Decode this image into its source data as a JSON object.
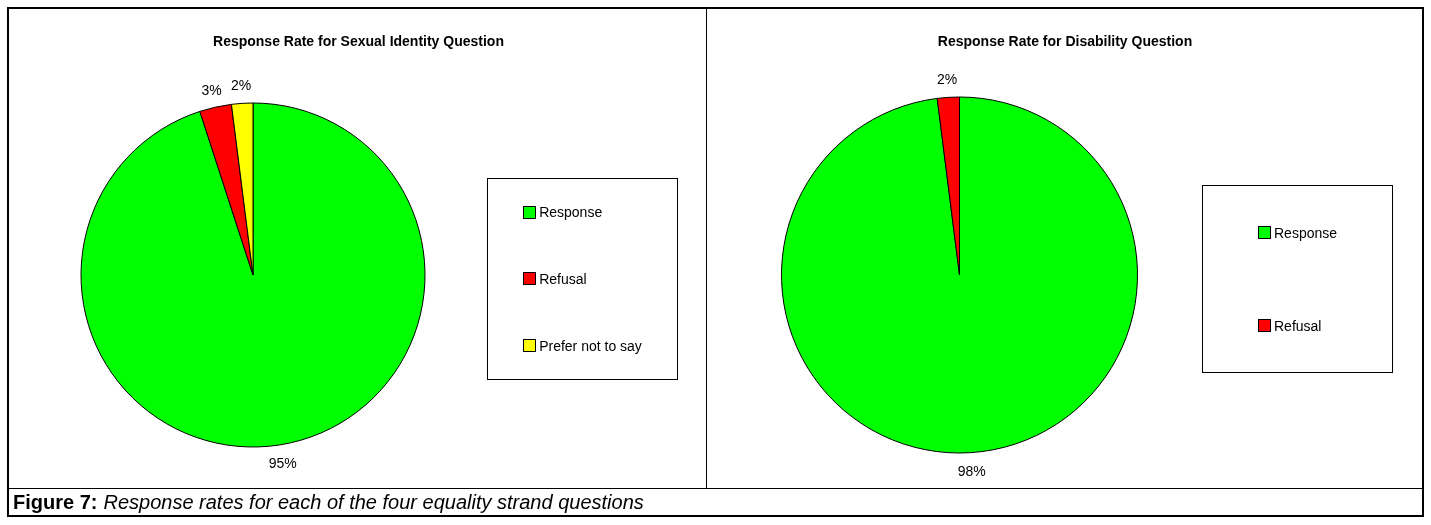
{
  "chart_data": [
    {
      "type": "pie",
      "title": "Response Rate for Sexual Identity Question",
      "categories": [
        "Response",
        "Refusal",
        "Prefer not to say"
      ],
      "values": [
        95,
        3,
        2
      ],
      "colors": [
        "#00ff00",
        "#ff0000",
        "#ffff00"
      ],
      "value_labels": [
        "95%",
        "3%",
        "2%"
      ],
      "legend": "right",
      "annotations": [
        "Figure 7:",
        "Response rates for each of the four equality strand questions"
      ]
    },
    {
      "type": "pie",
      "title": "Response Rate for Disability Question",
      "categories": [
        "Response",
        "Refusal"
      ],
      "values": [
        98,
        2
      ],
      "colors": [
        "#00ff00",
        "#ff0000"
      ],
      "value_labels": [
        "98%",
        "2%"
      ],
      "legend": "right"
    }
  ]
}
